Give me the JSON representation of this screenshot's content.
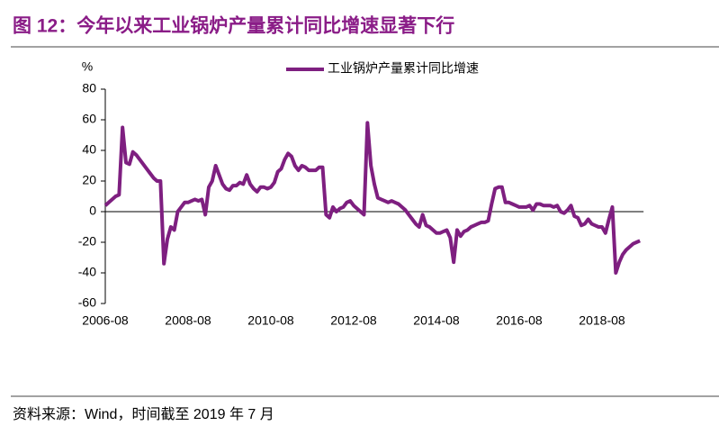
{
  "chart_data": {
    "type": "line",
    "title": "图 12：今年以来工业锅炉产量累计同比增速显著下行",
    "source": "资料来源：Wind，时间截至 2019 年 7 月",
    "y_unit": "%",
    "x": [
      "2006-08",
      "2006-09",
      "2006-10",
      "2006-11",
      "2006-12",
      "2007-01",
      "2007-02",
      "2007-03",
      "2007-04",
      "2007-05",
      "2007-06",
      "2007-07",
      "2007-08",
      "2007-09",
      "2007-10",
      "2007-11",
      "2007-12",
      "2008-01",
      "2008-02",
      "2008-03",
      "2008-04",
      "2008-05",
      "2008-06",
      "2008-07",
      "2008-08",
      "2008-09",
      "2008-10",
      "2008-11",
      "2008-12",
      "2009-01",
      "2009-02",
      "2009-03",
      "2009-04",
      "2009-05",
      "2009-06",
      "2009-07",
      "2009-08",
      "2009-09",
      "2009-10",
      "2009-11",
      "2009-12",
      "2010-01",
      "2010-02",
      "2010-03",
      "2010-04",
      "2010-05",
      "2010-06",
      "2010-07",
      "2010-08",
      "2010-09",
      "2010-10",
      "2010-11",
      "2010-12",
      "2011-01",
      "2011-02",
      "2011-03",
      "2011-04",
      "2011-05",
      "2011-06",
      "2011-07",
      "2011-08",
      "2011-09",
      "2011-10",
      "2011-11",
      "2011-12",
      "2012-01",
      "2012-02",
      "2012-03",
      "2012-04",
      "2012-05",
      "2012-06",
      "2012-07",
      "2012-08",
      "2012-09",
      "2012-10",
      "2012-11",
      "2012-12",
      "2013-01",
      "2013-02",
      "2013-03",
      "2013-04",
      "2013-05",
      "2013-06",
      "2013-07",
      "2013-08",
      "2013-09",
      "2013-10",
      "2013-11",
      "2013-12",
      "2014-01",
      "2014-02",
      "2014-03",
      "2014-04",
      "2014-05",
      "2014-06",
      "2014-07",
      "2014-08",
      "2014-09",
      "2014-10",
      "2014-11",
      "2014-12",
      "2015-01",
      "2015-02",
      "2015-03",
      "2015-04",
      "2015-05",
      "2015-06",
      "2015-07",
      "2015-08",
      "2015-09",
      "2015-10",
      "2015-11",
      "2015-12",
      "2016-01",
      "2016-02",
      "2016-03",
      "2016-04",
      "2016-05",
      "2016-06",
      "2016-07",
      "2016-08",
      "2016-09",
      "2016-10",
      "2016-11",
      "2016-12",
      "2017-01",
      "2017-02",
      "2017-03",
      "2017-04",
      "2017-05",
      "2017-06",
      "2017-07",
      "2017-08",
      "2017-09",
      "2017-10",
      "2017-11",
      "2017-12",
      "2018-01",
      "2018-02",
      "2018-03",
      "2018-04",
      "2018-05",
      "2018-06",
      "2018-07",
      "2018-08",
      "2018-09",
      "2018-10",
      "2018-11",
      "2018-12",
      "2019-01",
      "2019-02",
      "2019-03",
      "2019-04",
      "2019-05",
      "2019-06",
      "2019-07"
    ],
    "series": [
      {
        "name": "工业锅炉产量累计同比增速",
        "color": "#7e1f80",
        "values": [
          4,
          6,
          8,
          10,
          11,
          55,
          32,
          31,
          39,
          37,
          34,
          31,
          28,
          25,
          22,
          20,
          20,
          -34,
          -18,
          -10,
          -12,
          0,
          3,
          6,
          6,
          7,
          8,
          7,
          8,
          -2,
          16,
          20,
          30,
          24,
          18,
          15,
          14,
          17,
          17,
          19,
          18,
          24,
          18,
          15,
          13,
          16,
          16,
          15,
          16,
          19,
          26,
          28,
          34,
          38,
          36,
          30,
          27,
          30,
          29,
          27,
          27,
          27,
          29,
          29,
          -2,
          -4,
          3,
          0,
          2,
          3,
          6,
          7,
          4,
          2,
          0,
          -2,
          58,
          30,
          18,
          9,
          8,
          7,
          6,
          7,
          6,
          5,
          3,
          1,
          -2,
          -5,
          -8,
          -10,
          -2,
          -9,
          -10,
          -12,
          -14,
          -14,
          -13,
          -12,
          -17,
          -33,
          -12,
          -16,
          -13,
          -12,
          -10,
          -9,
          -8,
          -7,
          -7,
          -6,
          5,
          15,
          16,
          16,
          6,
          6,
          5,
          4,
          3,
          3,
          3,
          4,
          1,
          5,
          5,
          4,
          4,
          4,
          3,
          4,
          0,
          -1,
          1,
          4,
          -3,
          -4,
          -9,
          -8,
          -5,
          -8,
          -9,
          -10,
          -10,
          -14,
          -5,
          3,
          -40,
          -33,
          -28,
          -25,
          -23,
          -21,
          -20,
          -19
        ]
      }
    ],
    "xticks": [
      "2006-08",
      "2008-08",
      "2010-08",
      "2012-08",
      "2014-08",
      "2016-08",
      "2018-08"
    ],
    "ylim": [
      -60,
      80
    ],
    "yticks": [
      -60,
      -40,
      -20,
      0,
      20,
      40,
      60,
      80
    ],
    "legend": "top"
  }
}
